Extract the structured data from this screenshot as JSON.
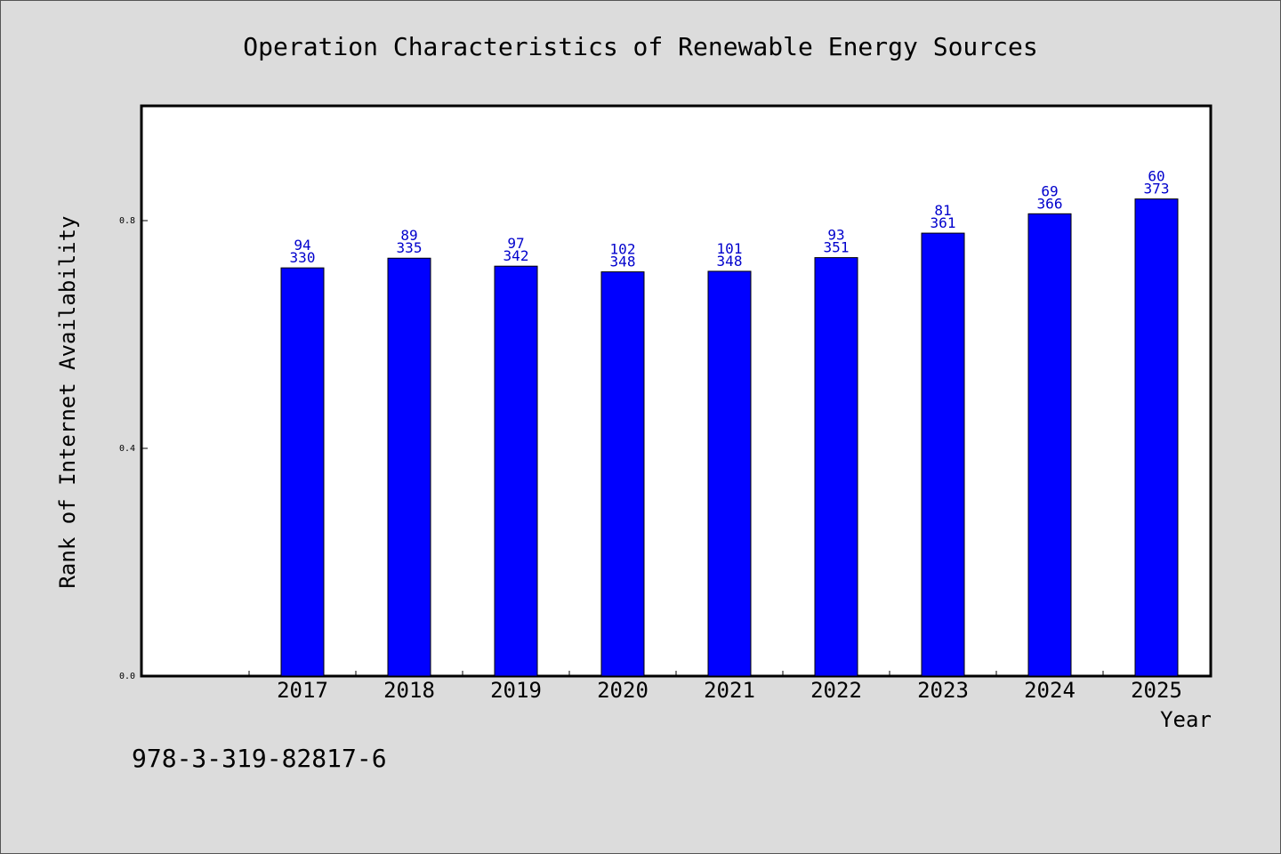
{
  "chart_data": {
    "type": "bar",
    "title": "Operation Characteristics of Renewable Energy Sources",
    "xlabel": "Year",
    "ylabel": "Rank of Internet Availability",
    "categories": [
      "2017",
      "2018",
      "2019",
      "2020",
      "2021",
      "2022",
      "2023",
      "2024",
      "2025"
    ],
    "values": [
      0.717,
      0.734,
      0.72,
      0.71,
      0.711,
      0.735,
      0.778,
      0.812,
      0.838
    ],
    "top_labels": [
      "94",
      "89",
      "97",
      "102",
      "101",
      "93",
      "81",
      "69",
      "60"
    ],
    "bottom_labels": [
      "330",
      "335",
      "342",
      "348",
      "348",
      "351",
      "361",
      "366",
      "373"
    ],
    "ylim": [
      0,
      1.0
    ],
    "yticks": [
      0.0,
      0.4,
      0.8
    ],
    "ytick_labels": [
      "0.0",
      "0.4",
      "0.8"
    ],
    "grid": false,
    "bar_color": "#0000ff",
    "label_color": "#0000cc"
  },
  "footer": {
    "text": "978-3-319-82817-6"
  }
}
